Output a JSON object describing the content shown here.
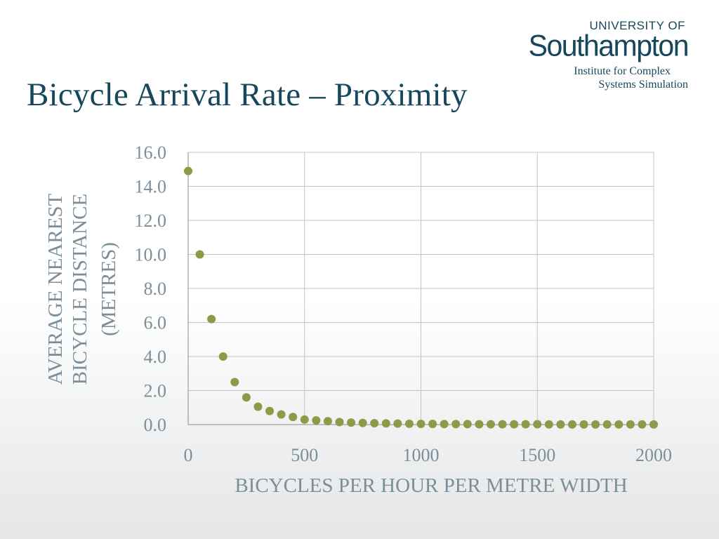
{
  "slide": {
    "title": "Bicycle Arrival Rate – Proximity"
  },
  "logo": {
    "line1": "UNIVERSITY OF",
    "line2": "Southampton",
    "subtitle_line1": "Institute for Complex",
    "subtitle_line2": "Systems Simulation"
  },
  "colors": {
    "title": "#17475c",
    "axis_text": "#7b8e9a",
    "marker": "#8e9a45",
    "grid": "#c4c4c4"
  },
  "chart_data": {
    "type": "scatter",
    "title": "",
    "xlabel": "BICYCLES PER HOUR PER METRE WIDTH",
    "ylabel_lines": [
      "AVERAGE NEAREST",
      "BICYCLE DISTANCE",
      "(METRES)"
    ],
    "xlim": [
      0,
      2000
    ],
    "ylim": [
      0,
      16
    ],
    "x_ticks": [
      "0",
      "500",
      "1000",
      "1500",
      "2000"
    ],
    "y_ticks": [
      "0.0",
      "2.0",
      "4.0",
      "6.0",
      "8.0",
      "10.0",
      "12.0",
      "14.0",
      "16.0"
    ],
    "grid": true,
    "legend": "none",
    "series": [
      {
        "x": [
          0,
          50,
          100,
          150,
          200,
          250,
          300,
          350,
          400,
          450,
          500,
          550,
          600,
          650,
          700,
          750,
          800,
          850,
          900,
          950,
          1000,
          1050,
          1100,
          1150,
          1200,
          1250,
          1300,
          1350,
          1400,
          1450,
          1500,
          1550,
          1600,
          1650,
          1700,
          1750,
          1800,
          1850,
          1900,
          1950,
          2000
        ],
        "y": [
          14.9,
          10.0,
          6.2,
          4.0,
          2.5,
          1.6,
          1.05,
          0.8,
          0.6,
          0.45,
          0.3,
          0.25,
          0.2,
          0.15,
          0.12,
          0.1,
          0.08,
          0.07,
          0.06,
          0.05,
          0.04,
          0.04,
          0.03,
          0.03,
          0.03,
          0.02,
          0.02,
          0.02,
          0.02,
          0.02,
          0.02,
          0.01,
          0.01,
          0.01,
          0.01,
          0.01,
          0.01,
          0.01,
          0.01,
          0.01,
          0.01
        ]
      }
    ]
  }
}
